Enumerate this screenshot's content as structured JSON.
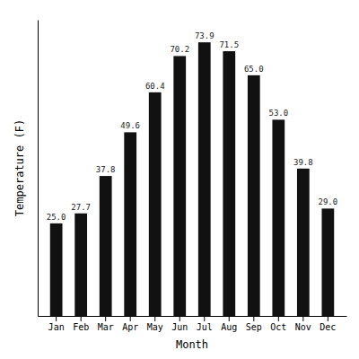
{
  "chart_data": {
    "type": "bar",
    "categories": [
      "Jan",
      "Feb",
      "Mar",
      "Apr",
      "May",
      "Jun",
      "Jul",
      "Aug",
      "Sep",
      "Oct",
      "Nov",
      "Dec"
    ],
    "values": [
      25.0,
      27.7,
      37.8,
      49.6,
      60.4,
      70.2,
      73.9,
      71.5,
      65.0,
      53.0,
      39.8,
      29.0
    ],
    "value_labels": [
      "25.0",
      "27.7",
      "37.8",
      "49.6",
      "60.4",
      "70.2",
      "73.9",
      "71.5",
      "65.0",
      "53.0",
      "39.8",
      "29.0"
    ],
    "color": "#111111",
    "x_label": "Month",
    "y_label": "Temperature (F)",
    "ylim": [
      0,
      80
    ],
    "grid": false,
    "data_labels": true,
    "tick_labels": "x"
  }
}
